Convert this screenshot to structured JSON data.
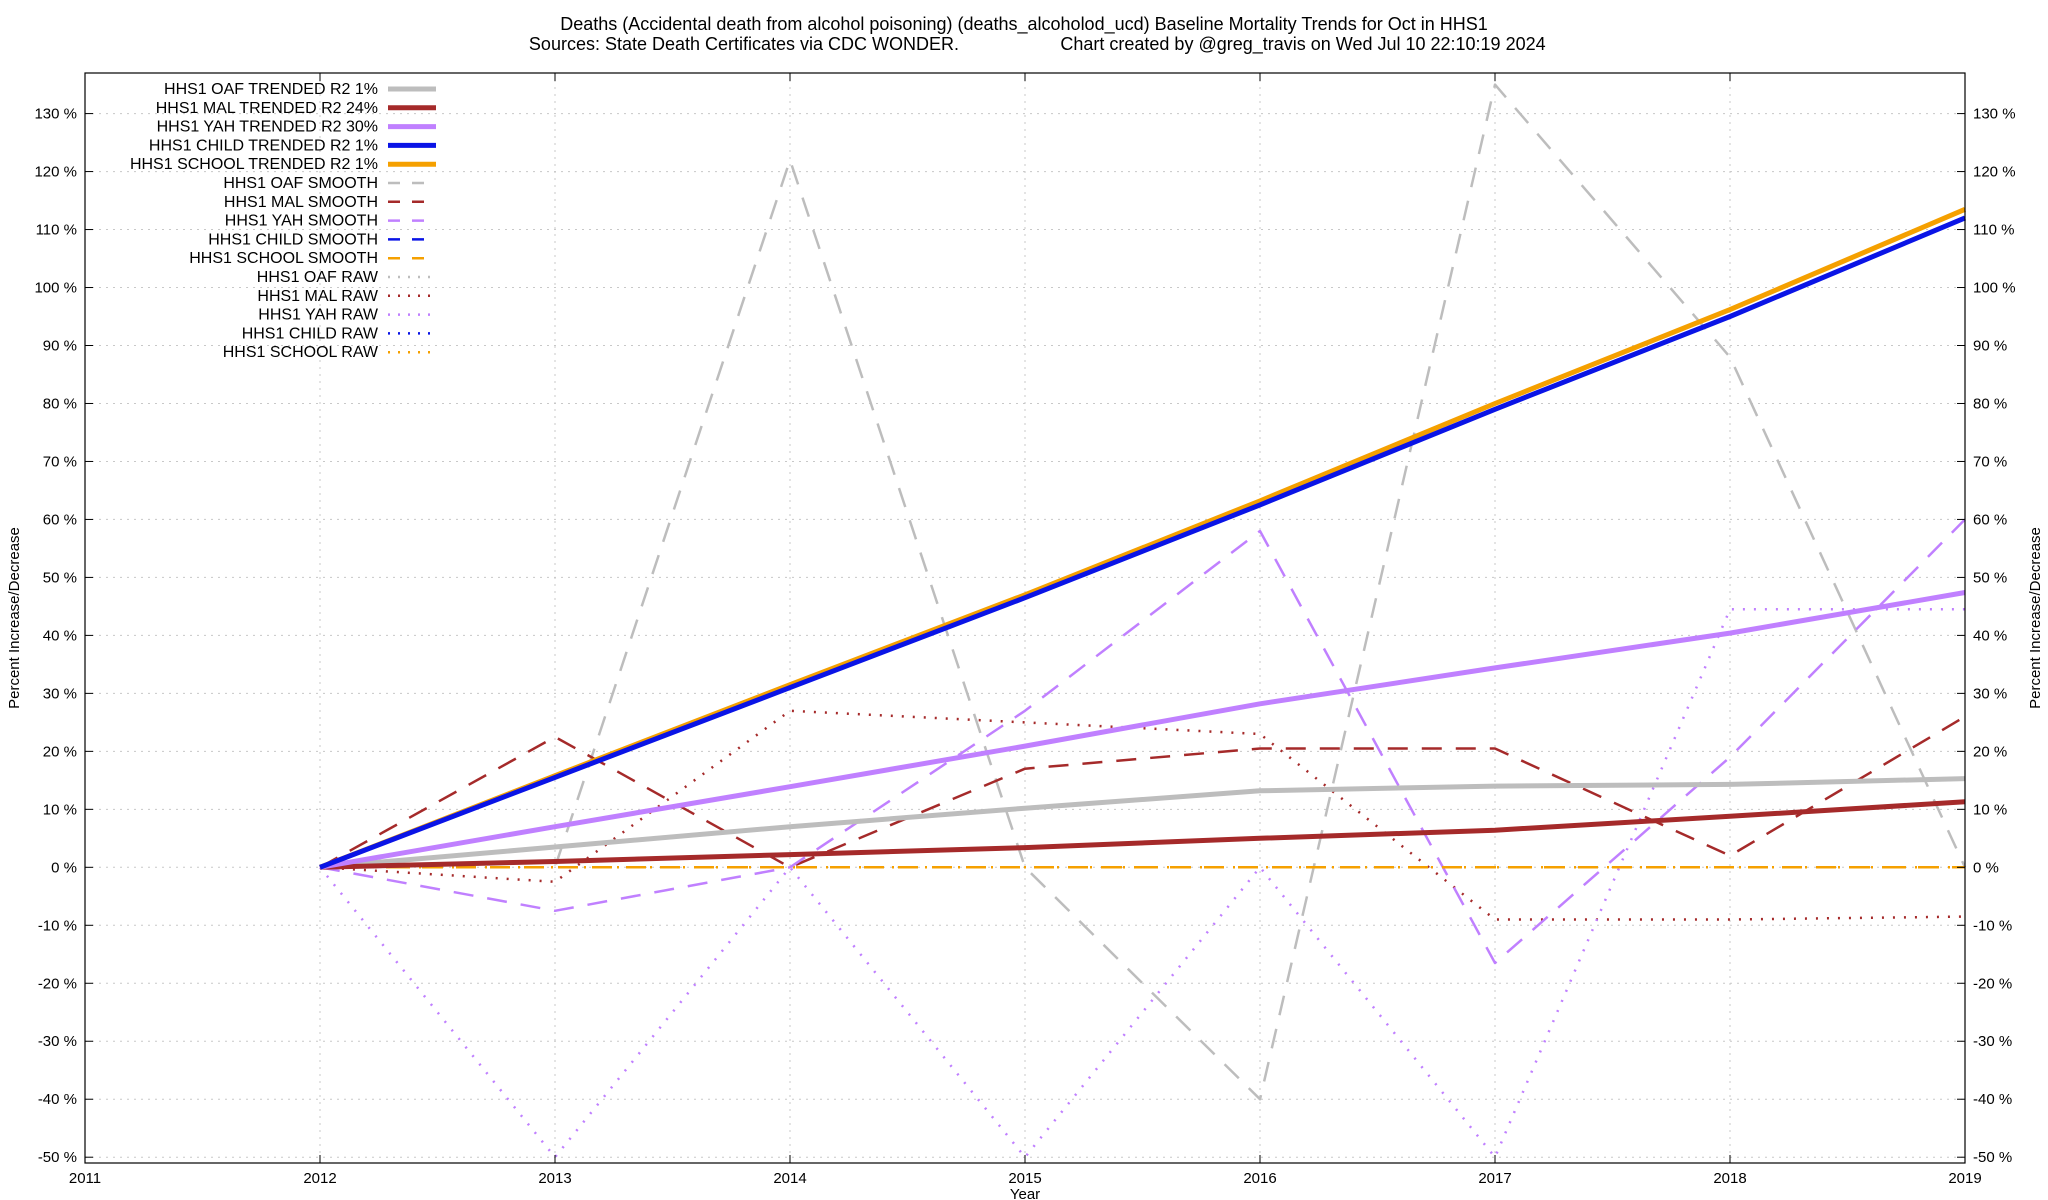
{
  "chart_data": {
    "type": "line",
    "title_line1": "Deaths (Accidental death from alcohol poisoning) (deaths_alcoholod_ucd)  Baseline Mortality Trends for Oct in HHS1",
    "title_line2a": "Sources: State Death Certificates via CDC WONDER.",
    "title_line2b": "Chart created by @greg_travis on Wed Jul 10 22:10:19 2024",
    "xlabel": "Year",
    "ylabel": "Percent Increase/Decrease",
    "xlim": [
      2011,
      2019
    ],
    "ylim": [
      -51,
      137
    ],
    "x_ticks": [
      2011,
      2012,
      2013,
      2014,
      2015,
      2016,
      2017,
      2018,
      2019
    ],
    "x_tick_labels": [
      "2011",
      "2012",
      "2013",
      "2014",
      "2015",
      "2016",
      "2017",
      "2018",
      "2019"
    ],
    "y_ticks": [
      -50,
      -40,
      -30,
      -20,
      -10,
      0,
      10,
      20,
      30,
      40,
      50,
      60,
      70,
      80,
      90,
      100,
      110,
      120,
      130
    ],
    "y_tick_labels": [
      "-50 %",
      "-40 %",
      "-30 %",
      "-20 %",
      "-10 %",
      "0 %",
      "10 %",
      "20 %",
      "30 %",
      "40 %",
      "50 %",
      "60 %",
      "70 %",
      "80 %",
      "90 %",
      "100 %",
      "110 %",
      "120 %",
      "130 %"
    ],
    "grid": true,
    "legend_position": "top-left",
    "x": [
      2012,
      2013,
      2014,
      2015,
      2016,
      2017,
      2018,
      2019
    ],
    "series": [
      {
        "name": "HHS1 OAF TRENDED R2   1%",
        "color": "#bdbdbd",
        "style": "solid",
        "values": [
          0,
          3.5,
          7,
          10.2,
          13.2,
          14,
          14.3,
          15.3
        ]
      },
      {
        "name": "HHS1 MAL TRENDED R2  24%",
        "color": "#a52a2a",
        "style": "solid",
        "values": [
          0,
          1,
          2.2,
          3.4,
          5,
          6.4,
          8.8,
          11.3
        ]
      },
      {
        "name": "HHS1 YAH TRENDED R2  30%",
        "color": "#c080ff",
        "style": "solid",
        "values": [
          0,
          7,
          13.9,
          20.9,
          28.2,
          34.4,
          40.4,
          47.4
        ]
      },
      {
        "name": "HHS1 CHILD TRENDED R2   1%",
        "color": "#0a14e6",
        "style": "solid",
        "values": [
          0,
          15.5,
          31,
          46.5,
          62.5,
          79,
          95,
          112
        ]
      },
      {
        "name": "HHS1 SCHOOL TRENDED R2   1%",
        "color": "#f5a000",
        "style": "solid",
        "values": [
          0,
          15.8,
          31.5,
          47,
          63.2,
          80,
          96.2,
          113.5
        ]
      },
      {
        "name": "HHS1 OAF SMOOTH",
        "color": "#bdbdbd",
        "style": "dashed",
        "values": [
          0,
          0,
          122,
          0,
          -40,
          135,
          88,
          0
        ]
      },
      {
        "name": "HHS1 MAL SMOOTH",
        "color": "#a52a2a",
        "style": "dashed",
        "values": [
          0,
          22.5,
          0,
          17,
          20.5,
          20.5,
          2,
          26
        ]
      },
      {
        "name": "HHS1 YAH SMOOTH",
        "color": "#c080ff",
        "style": "dashed",
        "values": [
          0,
          -7.5,
          0,
          27,
          58,
          -16.5,
          19,
          60
        ]
      },
      {
        "name": "HHS1 CHILD SMOOTH",
        "color": "#0a14e6",
        "style": "dashed",
        "values": [
          0,
          0,
          0,
          0,
          0,
          0,
          0,
          0
        ]
      },
      {
        "name": "HHS1 SCHOOL SMOOTH",
        "color": "#f5a000",
        "style": "dashed",
        "values": [
          0,
          0,
          0,
          0,
          0,
          0,
          0,
          0
        ]
      },
      {
        "name": "HHS1 OAF RAW",
        "color": "#bdbdbd",
        "style": "dotted",
        "values": [
          0,
          0,
          0,
          0,
          0,
          0,
          0,
          0
        ]
      },
      {
        "name": "HHS1 MAL RAW",
        "color": "#a52a2a",
        "style": "dotted",
        "values": [
          0,
          -2.5,
          27,
          25,
          23,
          -9,
          -9,
          -8.5
        ]
      },
      {
        "name": "HHS1 YAH RAW",
        "color": "#c080ff",
        "style": "dotted",
        "values": [
          0,
          -50,
          0,
          -50,
          0,
          -50,
          44.5,
          44.5
        ]
      },
      {
        "name": "HHS1 CHILD RAW",
        "color": "#0a14e6",
        "style": "dotted",
        "values": [
          0,
          0,
          0,
          0,
          0,
          0,
          0,
          0
        ]
      },
      {
        "name": "HHS1 SCHOOL RAW",
        "color": "#f5a000",
        "style": "dotted",
        "values": [
          0,
          0,
          0,
          0,
          0,
          0,
          0,
          0
        ]
      }
    ]
  }
}
